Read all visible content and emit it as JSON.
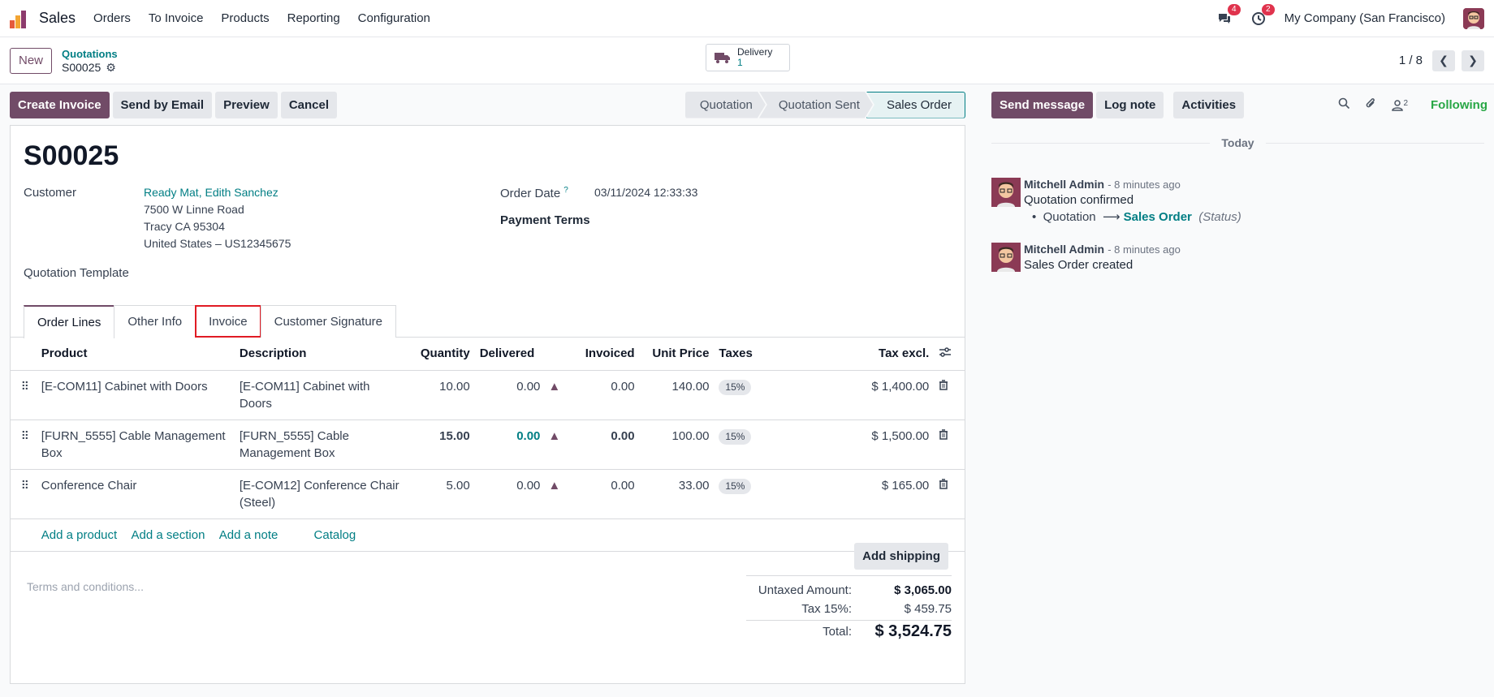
{
  "app": {
    "name": "Sales"
  },
  "topnav": {
    "items": [
      "Orders",
      "To Invoice",
      "Products",
      "Reporting",
      "Configuration"
    ],
    "messages_badge": "4",
    "activities_badge": "2",
    "company": "My Company (San Francisco)"
  },
  "control": {
    "new_label": "New",
    "breadcrumb_parent": "Quotations",
    "breadcrumb_current": "S00025",
    "smart_button": {
      "label": "Delivery",
      "count": "1"
    },
    "pager": "1 / 8"
  },
  "actions": {
    "create_invoice": "Create Invoice",
    "send_by_email": "Send by Email",
    "preview": "Preview",
    "cancel": "Cancel"
  },
  "statusbar": {
    "stages": [
      "Quotation",
      "Quotation Sent",
      "Sales Order"
    ],
    "active": "Sales Order"
  },
  "form": {
    "title": "S00025",
    "customer_label": "Customer",
    "customer_name": "Ready Mat, Edith Sanchez",
    "address_line1": "7500 W Linne Road",
    "address_line2": "Tracy CA 95304",
    "address_line3": "United States – US12345675",
    "template_label": "Quotation Template",
    "order_date_label": "Order Date",
    "order_date_help": "?",
    "order_date": "03/11/2024 12:33:33",
    "payment_terms_label": "Payment Terms"
  },
  "tabs": [
    "Order Lines",
    "Other Info",
    "Invoice",
    "Customer Signature"
  ],
  "lines": {
    "headers": {
      "product": "Product",
      "description": "Description",
      "quantity": "Quantity",
      "delivered": "Delivered",
      "invoiced": "Invoiced",
      "unit_price": "Unit Price",
      "taxes": "Taxes",
      "subtotal": "Tax excl."
    },
    "rows": [
      {
        "product": "[E-COM11] Cabinet with Doors",
        "description": "[E-COM11] Cabinet with Doors",
        "quantity": "10.00",
        "delivered": "0.00",
        "invoiced": "0.00",
        "unit_price": "140.00",
        "tax": "15%",
        "subtotal": "$ 1,400.00"
      },
      {
        "product": "[FURN_5555] Cable Management Box",
        "description": "[FURN_5555] Cable Management Box",
        "quantity": "15.00",
        "delivered": "0.00",
        "invoiced": "0.00",
        "unit_price": "100.00",
        "tax": "15%",
        "subtotal": "$ 1,500.00"
      },
      {
        "product": "Conference Chair",
        "description": "[E-COM12] Conference Chair (Steel)",
        "quantity": "5.00",
        "delivered": "0.00",
        "invoiced": "0.00",
        "unit_price": "33.00",
        "tax": "15%",
        "subtotal": "$ 165.00"
      }
    ],
    "add_product": "Add a product",
    "add_section": "Add a section",
    "add_note": "Add a note",
    "catalog": "Catalog"
  },
  "footer": {
    "add_shipping": "Add shipping",
    "terms_placeholder": "Terms and conditions...",
    "untaxed_label": "Untaxed Amount:",
    "untaxed_value": "$ 3,065.00",
    "tax_label": "Tax 15%:",
    "tax_value": "$ 459.75",
    "total_label": "Total:",
    "total_value": "$ 3,524.75"
  },
  "chatter": {
    "send_message": "Send message",
    "log_note": "Log note",
    "activities": "Activities",
    "followers_count": "2",
    "following": "Following",
    "today": "Today",
    "messages": [
      {
        "author": "Mitchell Admin",
        "when": "- 8 minutes ago",
        "body": "Quotation confirmed",
        "old": "Quotation",
        "arrow": "⟶",
        "new": "Sales Order",
        "field": "(Status)"
      },
      {
        "author": "Mitchell Admin",
        "when": "- 8 minutes ago",
        "body": "Sales Order created"
      }
    ]
  },
  "colors": {
    "brand": "#714b67",
    "link": "#017e84",
    "highlight": "#e01b24"
  }
}
